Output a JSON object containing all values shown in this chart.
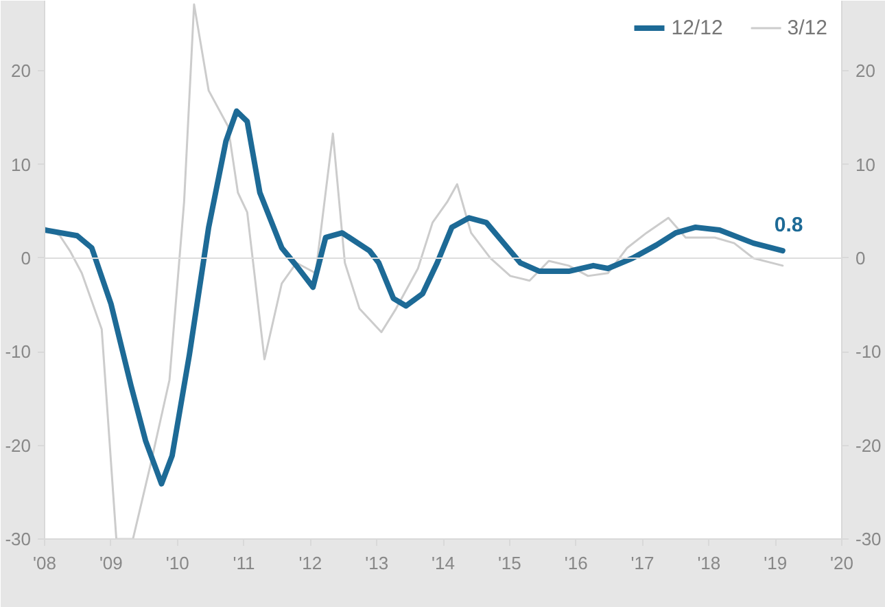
{
  "chart_data": {
    "type": "line",
    "xlim": [
      2008,
      2020
    ],
    "ylim": [
      -30,
      27.5
    ],
    "y2lim": [
      -30,
      27.5
    ],
    "xticks": [
      {
        "value": 2008,
        "label": "'08"
      },
      {
        "value": 2009,
        "label": "'09"
      },
      {
        "value": 2010,
        "label": "'10"
      },
      {
        "value": 2011,
        "label": "'11"
      },
      {
        "value": 2012,
        "label": "'12"
      },
      {
        "value": 2013,
        "label": "'13"
      },
      {
        "value": 2014,
        "label": "'14"
      },
      {
        "value": 2015,
        "label": "'15"
      },
      {
        "value": 2016,
        "label": "'16"
      },
      {
        "value": 2017,
        "label": "'17"
      },
      {
        "value": 2018,
        "label": "'18"
      },
      {
        "value": 2019,
        "label": "'19"
      },
      {
        "value": 2020,
        "label": "'20"
      }
    ],
    "yticks": [
      -30,
      -20,
      -10,
      0,
      10,
      20
    ],
    "y2ticks": [
      -30,
      -20,
      -10,
      0,
      10,
      20
    ],
    "legend": "top right",
    "grid": false,
    "ref_lines": [
      {
        "axis": "y",
        "value": 0,
        "color": "#dddddd"
      }
    ],
    "annotations": [
      {
        "text": "0.8",
        "x": 2019.11,
        "y": 0.8
      }
    ],
    "series": [
      {
        "name": "12/12",
        "color": "#1d6a96",
        "x": [
          2008.0,
          2008.49,
          2008.71,
          2009.0,
          2009.3,
          2009.52,
          2009.76,
          2009.92,
          2010.18,
          2010.47,
          2010.73,
          2010.89,
          2011.05,
          2011.24,
          2011.57,
          2011.79,
          2012.04,
          2012.23,
          2012.48,
          2012.89,
          2013.03,
          2013.25,
          2013.44,
          2013.69,
          2013.91,
          2014.13,
          2014.39,
          2014.65,
          2015.16,
          2015.45,
          2015.89,
          2016.26,
          2016.48,
          2016.85,
          2017.21,
          2017.5,
          2017.8,
          2018.16,
          2018.67,
          2019.11
        ],
        "values": [
          3.0,
          2.4,
          1.1,
          -4.9,
          -13.6,
          -19.5,
          -24.1,
          -21.1,
          -10.3,
          3.3,
          12.5,
          15.7,
          14.6,
          7.0,
          1.1,
          -0.8,
          -3.1,
          2.2,
          2.7,
          0.8,
          -0.5,
          -4.3,
          -5.1,
          -3.8,
          -0.5,
          3.3,
          4.3,
          3.8,
          -0.5,
          -1.4,
          -1.4,
          -0.8,
          -1.1,
          0.0,
          1.4,
          2.7,
          3.3,
          3.0,
          1.6,
          0.8
        ]
      },
      {
        "name": "3/12",
        "color": "#cccccc",
        "x": [
          2008.0,
          2008.23,
          2008.38,
          2008.56,
          2008.86,
          2009.08,
          2009.33,
          2009.59,
          2009.88,
          2010.1,
          2010.25,
          2010.47,
          2010.76,
          2010.91,
          2011.05,
          2011.31,
          2011.57,
          2011.79,
          2012.08,
          2012.34,
          2012.52,
          2012.74,
          2013.07,
          2013.29,
          2013.62,
          2013.84,
          2014.06,
          2014.21,
          2014.42,
          2014.71,
          2015.01,
          2015.3,
          2015.59,
          2015.89,
          2016.18,
          2016.48,
          2016.77,
          2017.06,
          2017.39,
          2017.65,
          2018.09,
          2018.38,
          2018.67,
          2019.11
        ],
        "values": [
          3.3,
          2.4,
          0.8,
          -1.6,
          -7.6,
          -30,
          -30,
          -22.2,
          -13.0,
          6.0,
          27.1,
          17.9,
          14.1,
          7.0,
          4.9,
          -10.8,
          -2.7,
          -0.5,
          -1.6,
          13.3,
          -0.5,
          -5.4,
          -7.9,
          -5.4,
          -1.1,
          3.8,
          6.0,
          7.9,
          2.7,
          0.0,
          -1.9,
          -2.4,
          -0.3,
          -0.8,
          -1.9,
          -1.6,
          1.1,
          2.7,
          4.3,
          2.2,
          2.2,
          1.6,
          0.0,
          -0.8
        ]
      }
    ]
  }
}
